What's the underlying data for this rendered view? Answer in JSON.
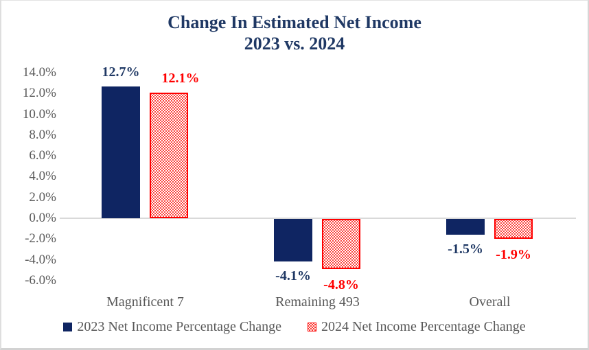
{
  "chart_data": {
    "type": "bar",
    "title": "Change In Estimated Net Income",
    "subtitle": "2023 vs. 2024",
    "categories": [
      "Magnificent 7",
      "Remaining 493",
      "Overall"
    ],
    "series": [
      {
        "name": "2023 Net Income Percentage Change",
        "values": [
          12.7,
          -4.1,
          -1.5
        ],
        "data_labels": [
          "12.7%",
          "-4.1%",
          "-1.5%"
        ],
        "color": "#0f2562",
        "fill_style": "solid"
      },
      {
        "name": "2024 Net Income Percentage Change",
        "values": [
          12.1,
          -4.8,
          -1.9
        ],
        "data_labels": [
          "12.1%",
          "-4.8%",
          "-1.9%"
        ],
        "color": "#ff0000",
        "fill_style": "dotted-pattern"
      }
    ],
    "y_axis": {
      "tick_labels": [
        "14.0%",
        "12.0%",
        "10.0%",
        "8.0%",
        "6.0%",
        "4.0%",
        "2.0%",
        "0.0%",
        "-2.0%",
        "-4.0%",
        "-6.0%"
      ],
      "tick_values": [
        14,
        12,
        10,
        8,
        6,
        4,
        2,
        0,
        -2,
        -4,
        -6
      ],
      "min": -6,
      "max": 14,
      "unit": "%"
    },
    "gridlines": "zero-line-only",
    "legend_position": "bottom"
  },
  "colors": {
    "series_2023": "#0f2562",
    "series_2024_border": "#ff0000",
    "series_2024_dots": "#fb3a33",
    "title_text": "#1f3864",
    "axis_text": "#595959",
    "gridline": "#d9d9d9",
    "label_2023": "#1f3864",
    "label_2024": "#ff0000"
  }
}
